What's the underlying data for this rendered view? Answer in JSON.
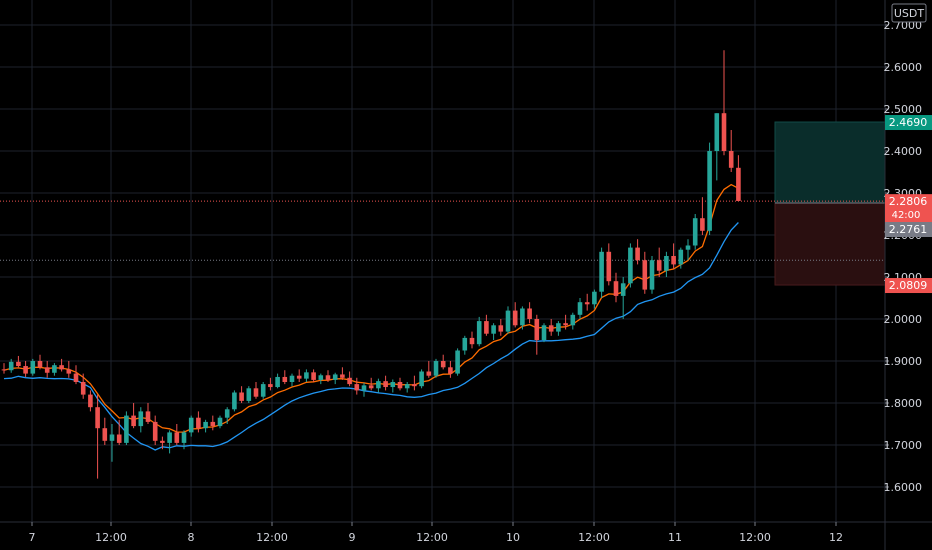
{
  "chart_data": {
    "type": "candlestick",
    "currency": "USDT",
    "y_ticks": [
      "2.7000",
      "2.6000",
      "2.5000",
      "2.4000",
      "2.3000",
      "2.2000",
      "2.1000",
      "2.0000",
      "1.9000",
      "1.8000",
      "1.7000",
      "1.6000"
    ],
    "x_ticks": [
      "7",
      "12:00",
      "8",
      "12:00",
      "9",
      "12:00",
      "10",
      "12:00",
      "11",
      "12:00",
      "12"
    ],
    "ylim": [
      1.51,
      2.745
    ],
    "grid": true,
    "price_tags": {
      "take_profit": "2.4690",
      "last_price": "2.2806",
      "countdown": "42:00",
      "entry": "2.2761",
      "stop_loss": "2.0809"
    },
    "position_levels": {
      "take_profit": 2.469,
      "entry": 2.2761,
      "stop_loss": 2.0809
    },
    "dotted_lines": [
      2.2806,
      2.14
    ],
    "candles": [
      [
        1.88,
        1.895,
        1.87,
        1.878
      ],
      [
        1.878,
        1.905,
        1.872,
        1.898
      ],
      [
        1.898,
        1.912,
        1.885,
        1.888
      ],
      [
        1.888,
        1.9,
        1.862,
        1.87
      ],
      [
        1.87,
        1.905,
        1.865,
        1.9
      ],
      [
        1.9,
        1.915,
        1.88,
        1.885
      ],
      [
        1.885,
        1.9,
        1.86,
        1.872
      ],
      [
        1.872,
        1.895,
        1.865,
        1.89
      ],
      [
        1.89,
        1.905,
        1.875,
        1.88
      ],
      [
        1.88,
        1.9,
        1.86,
        1.87
      ],
      [
        1.87,
        1.89,
        1.845,
        1.85
      ],
      [
        1.85,
        1.87,
        1.81,
        1.82
      ],
      [
        1.82,
        1.83,
        1.78,
        1.79
      ],
      [
        1.79,
        1.82,
        1.62,
        1.74
      ],
      [
        1.74,
        1.765,
        1.7,
        1.71
      ],
      [
        1.71,
        1.75,
        1.66,
        1.725
      ],
      [
        1.725,
        1.76,
        1.7,
        1.705
      ],
      [
        1.705,
        1.78,
        1.7,
        1.77
      ],
      [
        1.77,
        1.8,
        1.74,
        1.745
      ],
      [
        1.745,
        1.79,
        1.73,
        1.78
      ],
      [
        1.78,
        1.8,
        1.75,
        1.755
      ],
      [
        1.755,
        1.77,
        1.7,
        1.71
      ],
      [
        1.71,
        1.72,
        1.69,
        1.705
      ],
      [
        1.705,
        1.735,
        1.68,
        1.73
      ],
      [
        1.73,
        1.75,
        1.7,
        1.705
      ],
      [
        1.705,
        1.735,
        1.69,
        1.73
      ],
      [
        1.73,
        1.77,
        1.72,
        1.765
      ],
      [
        1.765,
        1.78,
        1.73,
        1.74
      ],
      [
        1.74,
        1.76,
        1.73,
        1.755
      ],
      [
        1.755,
        1.77,
        1.735,
        1.745
      ],
      [
        1.745,
        1.77,
        1.74,
        1.765
      ],
      [
        1.765,
        1.79,
        1.75,
        1.785
      ],
      [
        1.785,
        1.83,
        1.78,
        1.825
      ],
      [
        1.825,
        1.84,
        1.8,
        1.805
      ],
      [
        1.805,
        1.84,
        1.8,
        1.835
      ],
      [
        1.835,
        1.85,
        1.81,
        1.815
      ],
      [
        1.815,
        1.85,
        1.81,
        1.845
      ],
      [
        1.845,
        1.86,
        1.83,
        1.838
      ],
      [
        1.838,
        1.87,
        1.835,
        1.862
      ],
      [
        1.862,
        1.878,
        1.845,
        1.85
      ],
      [
        1.85,
        1.87,
        1.84,
        1.865
      ],
      [
        1.865,
        1.88,
        1.85,
        1.858
      ],
      [
        1.858,
        1.88,
        1.85,
        1.873
      ],
      [
        1.873,
        1.88,
        1.85,
        1.855
      ],
      [
        1.855,
        1.87,
        1.845,
        1.866
      ],
      [
        1.866,
        1.878,
        1.85,
        1.855
      ],
      [
        1.855,
        1.872,
        1.845,
        1.868
      ],
      [
        1.868,
        1.885,
        1.855,
        1.86
      ],
      [
        1.86,
        1.875,
        1.84,
        1.845
      ],
      [
        1.845,
        1.86,
        1.82,
        1.83
      ],
      [
        1.83,
        1.848,
        1.815,
        1.842
      ],
      [
        1.842,
        1.86,
        1.83,
        1.835
      ],
      [
        1.835,
        1.858,
        1.825,
        1.852
      ],
      [
        1.852,
        1.865,
        1.83,
        1.838
      ],
      [
        1.838,
        1.856,
        1.825,
        1.85
      ],
      [
        1.85,
        1.86,
        1.83,
        1.835
      ],
      [
        1.835,
        1.85,
        1.825,
        1.845
      ],
      [
        1.845,
        1.865,
        1.83,
        1.84
      ],
      [
        1.84,
        1.88,
        1.835,
        1.875
      ],
      [
        1.875,
        1.9,
        1.86,
        1.865
      ],
      [
        1.865,
        1.905,
        1.86,
        1.9
      ],
      [
        1.9,
        1.915,
        1.88,
        1.885
      ],
      [
        1.885,
        1.9,
        1.86,
        1.87
      ],
      [
        1.87,
        1.93,
        1.865,
        1.925
      ],
      [
        1.925,
        1.96,
        1.915,
        1.955
      ],
      [
        1.955,
        1.97,
        1.93,
        1.94
      ],
      [
        1.94,
        2.005,
        1.935,
        1.995
      ],
      [
        1.995,
        2.01,
        1.96,
        1.965
      ],
      [
        1.965,
        1.99,
        1.95,
        1.985
      ],
      [
        1.985,
        2.0,
        1.96,
        1.97
      ],
      [
        1.97,
        2.03,
        1.965,
        2.02
      ],
      [
        2.02,
        2.04,
        1.98,
        1.985
      ],
      [
        1.985,
        2.03,
        1.975,
        2.025
      ],
      [
        2.025,
        2.04,
        1.99,
        2.0
      ],
      [
        2.0,
        2.01,
        1.915,
        1.95
      ],
      [
        1.95,
        1.99,
        1.945,
        1.985
      ],
      [
        1.985,
        2.0,
        1.96,
        1.97
      ],
      [
        1.97,
        1.995,
        1.96,
        1.99
      ],
      [
        1.99,
        2.01,
        1.975,
        1.985
      ],
      [
        1.985,
        2.015,
        1.975,
        2.01
      ],
      [
        2.01,
        2.05,
        2.0,
        2.04
      ],
      [
        2.04,
        2.06,
        2.02,
        2.035
      ],
      [
        2.035,
        2.07,
        2.025,
        2.065
      ],
      [
        2.065,
        2.17,
        2.05,
        2.16
      ],
      [
        2.16,
        2.18,
        2.08,
        2.09
      ],
      [
        2.09,
        2.11,
        2.04,
        2.055
      ],
      [
        2.055,
        2.1,
        2.0,
        2.085
      ],
      [
        2.085,
        2.18,
        2.075,
        2.17
      ],
      [
        2.17,
        2.19,
        2.13,
        2.14
      ],
      [
        2.14,
        2.16,
        2.06,
        2.07
      ],
      [
        2.07,
        2.15,
        2.06,
        2.14
      ],
      [
        2.14,
        2.17,
        2.1,
        2.115
      ],
      [
        2.115,
        2.16,
        2.1,
        2.15
      ],
      [
        2.15,
        2.18,
        2.12,
        2.13
      ],
      [
        2.13,
        2.17,
        2.12,
        2.165
      ],
      [
        2.165,
        2.19,
        2.14,
        2.175
      ],
      [
        2.175,
        2.25,
        2.165,
        2.24
      ],
      [
        2.24,
        2.29,
        2.2,
        2.21
      ],
      [
        2.21,
        2.42,
        2.2,
        2.4
      ],
      [
        2.4,
        2.49,
        2.33,
        2.49
      ],
      [
        2.49,
        2.64,
        2.39,
        2.4
      ],
      [
        2.4,
        2.45,
        2.35,
        2.36
      ],
      [
        2.36,
        2.39,
        2.28,
        2.281
      ]
    ]
  }
}
